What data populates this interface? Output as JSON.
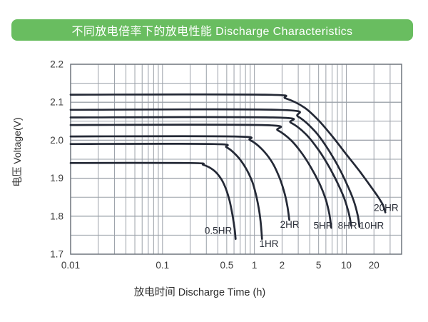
{
  "title": {
    "text": "不同放电倍率下的放电性能 Discharge Characteristics"
  },
  "colors": {
    "background": "#ffffff",
    "header_bg": "#69bd60",
    "header_text": "#ffffff",
    "curve": "#242936",
    "grid": "#9aa0a8",
    "plot_border": "#6f757d",
    "tick_text": "#3a3a3a",
    "axis_title_text": "#2d2d2d",
    "curve_label_text": "#2a2e38"
  },
  "chart_data": {
    "type": "line",
    "x_scale": "log",
    "y_scale": "linear",
    "xlabel": "放电时间  Discharge Time (h)",
    "ylabel": "电压  Voltage(V)",
    "xlim": [
      0.01,
      40
    ],
    "ylim": [
      1.7,
      2.2
    ],
    "grid": true,
    "legend_position": "inline-curve-labels",
    "x_tick_labels": [
      {
        "value": 0.01,
        "label": "0.01"
      },
      {
        "value": 0.1,
        "label": "0.1"
      },
      {
        "value": 0.5,
        "label": "0.5"
      },
      {
        "value": 1,
        "label": "1"
      },
      {
        "value": 2,
        "label": "2"
      },
      {
        "value": 5,
        "label": "5"
      },
      {
        "value": 10,
        "label": "10"
      },
      {
        "value": 20,
        "label": "20"
      }
    ],
    "x_gridlines": [
      0.02,
      0.03,
      0.04,
      0.05,
      0.06,
      0.07,
      0.08,
      0.09,
      0.1,
      0.2,
      0.3,
      0.4,
      0.5,
      0.6,
      0.7,
      0.8,
      0.9,
      1,
      2,
      3,
      4,
      5,
      6,
      7,
      8,
      9,
      10,
      20,
      30
    ],
    "y_tick_labels": [
      {
        "value": 2.2,
        "label": "2.2"
      },
      {
        "value": 2.1,
        "label": "2.1"
      },
      {
        "value": 2.0,
        "label": "2.0"
      },
      {
        "value": 1.9,
        "label": "1.9"
      },
      {
        "value": 1.8,
        "label": "1.8"
      },
      {
        "value": 1.7,
        "label": "1.7"
      }
    ],
    "y_gridlines": [
      1.75,
      1.8,
      1.85,
      1.9,
      1.95,
      2.0,
      2.05,
      2.1,
      2.15
    ],
    "series": [
      {
        "name": "0.5HR",
        "plateau_voltage": 1.94,
        "label_anchor": {
          "t": 0.405,
          "v": 1.762
        },
        "points": [
          [
            0.01,
            1.94
          ],
          [
            0.2,
            1.94
          ],
          [
            0.28,
            1.935
          ],
          [
            0.36,
            1.921
          ],
          [
            0.43,
            1.9
          ],
          [
            0.49,
            1.872
          ],
          [
            0.54,
            1.838
          ],
          [
            0.58,
            1.8
          ],
          [
            0.61,
            1.765
          ],
          [
            0.625,
            1.74
          ]
        ]
      },
      {
        "name": "1HR",
        "plateau_voltage": 1.99,
        "label_anchor": {
          "t": 1.44,
          "v": 1.727
        },
        "points": [
          [
            0.01,
            1.99
          ],
          [
            0.35,
            1.99
          ],
          [
            0.5,
            1.981
          ],
          [
            0.65,
            1.958
          ],
          [
            0.8,
            1.928
          ],
          [
            0.95,
            1.89
          ],
          [
            1.05,
            1.852
          ],
          [
            1.13,
            1.812
          ],
          [
            1.18,
            1.775
          ],
          [
            1.21,
            1.74
          ]
        ]
      },
      {
        "name": "2HR",
        "plateau_voltage": 2.01,
        "label_anchor": {
          "t": 2.42,
          "v": 1.778
        },
        "points": [
          [
            0.01,
            2.01
          ],
          [
            0.6,
            2.01
          ],
          [
            0.9,
            2.0
          ],
          [
            1.2,
            1.977
          ],
          [
            1.55,
            1.943
          ],
          [
            1.85,
            1.905
          ],
          [
            2.1,
            1.866
          ],
          [
            2.28,
            1.828
          ],
          [
            2.4,
            1.79
          ]
        ]
      },
      {
        "name": "5HR",
        "plateau_voltage": 2.04,
        "label_anchor": {
          "t": 5.6,
          "v": 1.775
        },
        "points": [
          [
            0.01,
            2.04
          ],
          [
            1.2,
            2.04
          ],
          [
            1.8,
            2.026
          ],
          [
            2.5,
            2.0
          ],
          [
            3.3,
            1.965
          ],
          [
            4.2,
            1.925
          ],
          [
            5.2,
            1.882
          ],
          [
            6.0,
            1.843
          ],
          [
            6.55,
            1.805
          ],
          [
            6.85,
            1.77
          ]
        ]
      },
      {
        "name": "8HR",
        "plateau_voltage": 2.06,
        "label_anchor": {
          "t": 10.3,
          "v": 1.775
        },
        "points": [
          [
            0.01,
            2.06
          ],
          [
            1.6,
            2.06
          ],
          [
            2.5,
            2.046
          ],
          [
            3.6,
            2.017
          ],
          [
            5.0,
            1.974
          ],
          [
            6.5,
            1.93
          ],
          [
            8.0,
            1.888
          ],
          [
            9.5,
            1.847
          ],
          [
            10.7,
            1.806
          ],
          [
            11.3,
            1.775
          ]
        ]
      },
      {
        "name": "10HR",
        "plateau_voltage": 2.08,
        "label_anchor": {
          "t": 18.9,
          "v": 1.775
        },
        "points": [
          [
            0.01,
            2.08
          ],
          [
            1.8,
            2.08
          ],
          [
            3.0,
            2.062
          ],
          [
            4.5,
            2.025
          ],
          [
            6.0,
            1.985
          ],
          [
            8.0,
            1.935
          ],
          [
            10.0,
            1.888
          ],
          [
            12.0,
            1.842
          ],
          [
            13.3,
            1.803
          ],
          [
            13.9,
            1.772
          ]
        ]
      },
      {
        "name": "20HR",
        "plateau_voltage": 2.12,
        "label_anchor": {
          "t": 27.2,
          "v": 1.822
        },
        "points": [
          [
            0.01,
            2.12
          ],
          [
            1.3,
            2.12
          ],
          [
            2.2,
            2.11
          ],
          [
            3.5,
            2.086
          ],
          [
            5.0,
            2.052
          ],
          [
            7.0,
            2.011
          ],
          [
            10.0,
            1.963
          ],
          [
            14.0,
            1.918
          ],
          [
            18.0,
            1.882
          ],
          [
            22.0,
            1.852
          ],
          [
            25.0,
            1.83
          ],
          [
            26.6,
            1.81
          ]
        ]
      }
    ]
  }
}
